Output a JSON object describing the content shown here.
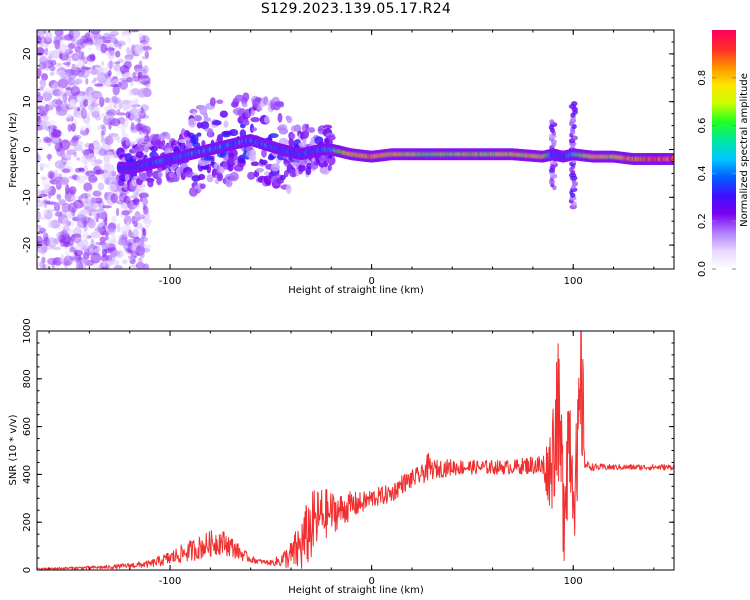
{
  "title": "S129.2023.139.05.17.R24",
  "colors": {
    "snr_line": "#f03030",
    "colormap": [
      "#ffffff",
      "#e6d6ff",
      "#b07cff",
      "#7a00f0",
      "#4010ff",
      "#0060ff",
      "#00c8ff",
      "#00e8a0",
      "#20ff20",
      "#c8ff00",
      "#ffe600",
      "#ff9000",
      "#ff2a2a",
      "#ff0060"
    ]
  },
  "chart_data": [
    {
      "type": "heatmap",
      "name": "spectrogram",
      "xlabel": "Height of straight line (km)",
      "ylabel": "Frequency (Hz)",
      "xlim": [
        -166,
        150
      ],
      "ylim": [
        -25,
        25
      ],
      "x_ticks": [
        -100,
        0,
        100
      ],
      "y_ticks": [
        -20,
        -10,
        0,
        10,
        20
      ],
      "colorbar": {
        "label": "Normalized spectral amplitude",
        "range": [
          0,
          1
        ],
        "ticks": [
          "0.0",
          "0.2",
          "0.4",
          "0.6",
          "0.8"
        ]
      },
      "ridge": {
        "x": [
          -166,
          -140,
          -120,
          -100,
          -80,
          -60,
          -45,
          -35,
          -25,
          -20,
          -10,
          0,
          10,
          30,
          50,
          70,
          85,
          90,
          95,
          100,
          110,
          120,
          130,
          140,
          150
        ],
        "freq": [
          0,
          -3,
          -4,
          -2,
          0,
          2,
          0,
          -1,
          0,
          0,
          -1,
          -1.5,
          -1,
          -1,
          -1,
          -1,
          -1.5,
          -1,
          -1.5,
          -1,
          -1.5,
          -1.5,
          -2,
          -2,
          -2
        ],
        "amplitude": [
          0.0,
          0.1,
          0.3,
          0.45,
          0.45,
          0.4,
          0.4,
          0.35,
          0.45,
          0.55,
          0.8,
          0.85,
          0.8,
          0.65,
          0.7,
          0.75,
          0.8,
          0.4,
          0.3,
          0.55,
          0.8,
          0.75,
          0.85,
          0.9,
          0.9
        ]
      }
    },
    {
      "type": "line",
      "name": "snr",
      "xlabel": "Height of straight line (km)",
      "ylabel": "SNR (10 * v/v)",
      "xlim": [
        -166,
        150
      ],
      "ylim": [
        0,
        1000
      ],
      "x_ticks": [
        -100,
        0,
        100
      ],
      "y_ticks": [
        0,
        200,
        400,
        600,
        800,
        1000
      ],
      "series": [
        {
          "x": [
            -166,
            -150,
            -130,
            -110,
            -100,
            -90,
            -80,
            -75,
            -70,
            -65,
            -60,
            -55,
            -50,
            -45,
            -40,
            -35,
            -30,
            -25,
            -20,
            -15,
            -10,
            -5,
            0,
            5,
            10,
            15,
            20,
            25,
            28,
            30,
            40,
            50,
            60,
            70,
            80,
            85,
            88,
            90,
            92,
            95,
            98,
            100,
            102,
            104,
            106,
            110,
            120,
            130,
            140,
            150
          ],
          "values": [
            5,
            8,
            12,
            25,
            50,
            80,
            110,
            120,
            100,
            70,
            45,
            35,
            30,
            40,
            60,
            100,
            180,
            230,
            240,
            250,
            270,
            280,
            300,
            310,
            320,
            360,
            380,
            400,
            430,
            420,
            430,
            430,
            430,
            430,
            440,
            430,
            420,
            500,
            700,
            300,
            600,
            400,
            350,
            800,
            440,
            430,
            430,
            430,
            430,
            430
          ],
          "noise": [
            3,
            5,
            8,
            15,
            30,
            45,
            55,
            55,
            45,
            30,
            15,
            10,
            10,
            30,
            60,
            120,
            150,
            120,
            90,
            70,
            60,
            45,
            40,
            40,
            40,
            40,
            40,
            40,
            60,
            40,
            35,
            30,
            30,
            30,
            40,
            60,
            150,
            260,
            320,
            320,
            300,
            220,
            300,
            420,
            20,
            15,
            12,
            12,
            12,
            12
          ]
        }
      ]
    }
  ]
}
